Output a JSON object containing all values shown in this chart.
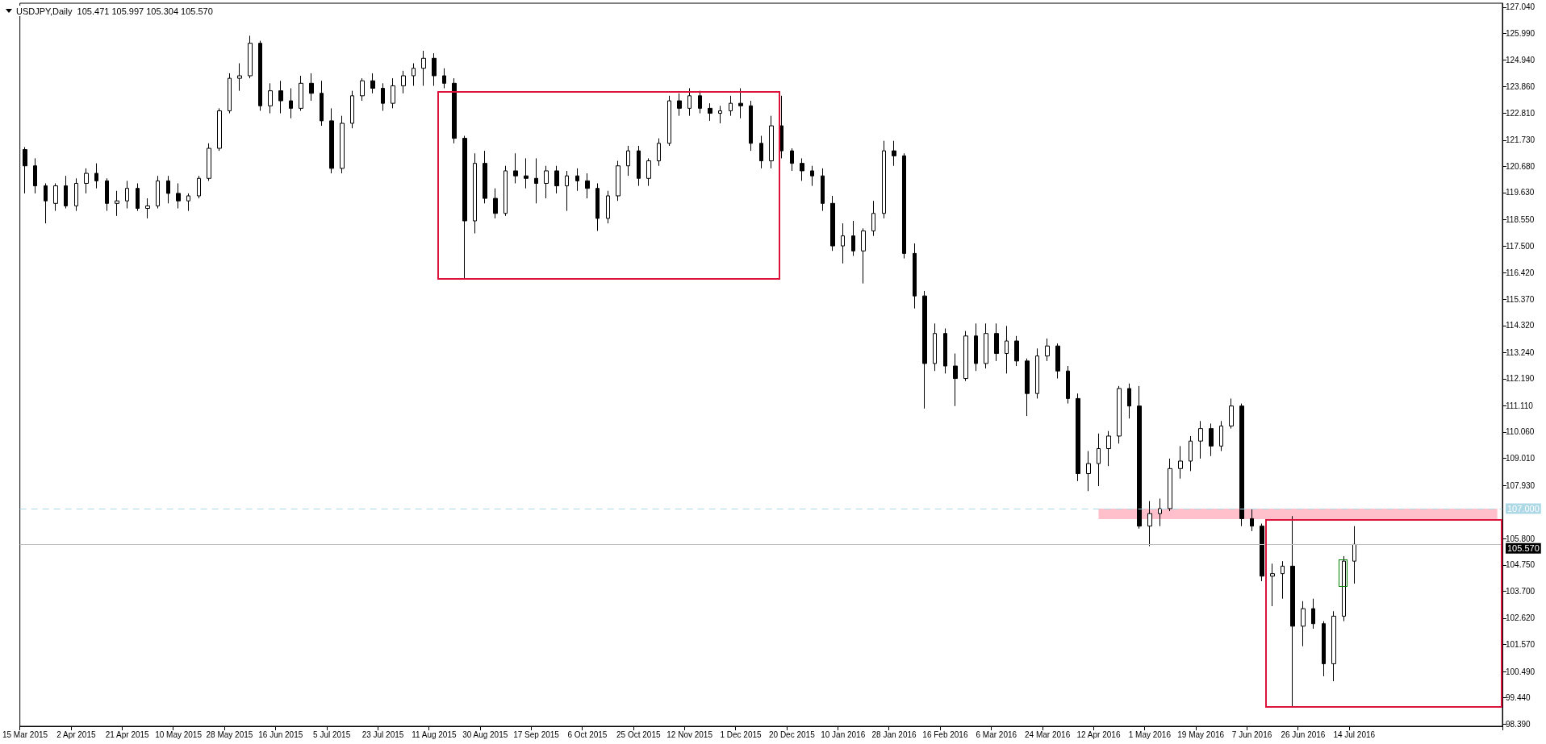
{
  "chart_data": {
    "type": "candlestick",
    "title": "USDJPY,Daily  105.471 105.997 105.304 105.570",
    "color": "#000000",
    "categories": [
      "15 Mar 2015",
      null,
      null,
      null,
      null,
      "2 Apr 2015",
      null,
      null,
      null,
      null,
      "21 Apr 2015",
      null,
      null,
      null,
      null,
      "10 May 2015",
      null,
      null,
      null,
      null,
      "28 May 2015",
      null,
      null,
      null,
      null,
      "16 Jun 2015",
      null,
      null,
      null,
      null,
      "5 Jul 2015",
      null,
      null,
      null,
      null,
      "23 Jul 2015",
      null,
      null,
      null,
      null,
      "11 Aug 2015",
      null,
      null,
      null,
      null,
      "30 Aug 2015",
      null,
      null,
      null,
      null,
      "17 Sep 2015",
      null,
      null,
      null,
      null,
      "6 Oct 2015",
      null,
      null,
      null,
      null,
      "25 Oct 2015",
      null,
      null,
      null,
      null,
      "12 Nov 2015",
      null,
      null,
      null,
      null,
      "1 Dec 2015",
      null,
      null,
      null,
      null,
      "20 Dec 2015",
      null,
      null,
      null,
      null,
      "10 Jan 2016",
      null,
      null,
      null,
      null,
      "28 Jan 2016",
      null,
      null,
      null,
      null,
      "16 Feb 2016",
      null,
      null,
      null,
      null,
      "6 Mar 2016",
      null,
      null,
      null,
      null,
      "24 Mar 2016",
      null,
      null,
      null,
      null,
      "12 Apr 2016",
      null,
      null,
      null,
      null,
      "1 May 2016",
      null,
      null,
      null,
      null,
      "19 May 2016",
      null,
      null,
      null,
      null,
      "7 Jun 2016",
      null,
      null,
      null,
      null,
      "26 Jun 2016",
      null,
      null,
      null,
      null,
      "14 Jul 2016",
      null,
      null,
      null,
      null,
      null,
      null,
      null,
      null,
      null,
      null,
      null,
      null,
      null,
      null
    ],
    "ohlc": [
      [
        121.35,
        121.45,
        119.6,
        120.7
      ],
      [
        120.7,
        121.0,
        119.6,
        119.9
      ],
      [
        119.9,
        120.0,
        118.4,
        119.3
      ],
      [
        119.2,
        120.0,
        118.9,
        119.9
      ],
      [
        119.9,
        120.3,
        119.0,
        119.1
      ],
      [
        119.1,
        120.2,
        118.9,
        120.0
      ],
      [
        120.0,
        120.6,
        119.6,
        120.4
      ],
      [
        120.4,
        120.8,
        119.8,
        120.1
      ],
      [
        120.1,
        120.2,
        118.9,
        119.2
      ],
      [
        119.2,
        119.7,
        118.7,
        119.3
      ],
      [
        119.3,
        120.1,
        119.0,
        119.8
      ],
      [
        119.8,
        120.0,
        118.9,
        119.0
      ],
      [
        119.0,
        119.4,
        118.6,
        119.1
      ],
      [
        119.1,
        120.3,
        119.0,
        120.1
      ],
      [
        120.1,
        120.3,
        119.2,
        119.6
      ],
      [
        119.6,
        120.0,
        119.0,
        119.3
      ],
      [
        119.3,
        119.6,
        118.9,
        119.5
      ],
      [
        119.5,
        120.3,
        119.4,
        120.2
      ],
      [
        120.2,
        121.6,
        120.1,
        121.4
      ],
      [
        121.4,
        123.0,
        121.3,
        122.9
      ],
      [
        122.9,
        124.4,
        122.8,
        124.2
      ],
      [
        124.2,
        124.8,
        123.7,
        124.3
      ],
      [
        124.3,
        125.9,
        124.2,
        125.6
      ],
      [
        125.6,
        125.7,
        122.9,
        123.1
      ],
      [
        123.1,
        124.0,
        122.8,
        123.7
      ],
      [
        123.7,
        124.1,
        122.8,
        123.3
      ],
      [
        123.3,
        123.8,
        122.6,
        123.0
      ],
      [
        123.0,
        124.3,
        122.9,
        124.0
      ],
      [
        124.0,
        124.4,
        123.3,
        123.6
      ],
      [
        123.6,
        124.1,
        122.3,
        122.5
      ],
      [
        122.5,
        123.0,
        120.4,
        120.6
      ],
      [
        120.6,
        122.7,
        120.4,
        122.4
      ],
      [
        122.4,
        123.7,
        122.2,
        123.5
      ],
      [
        123.5,
        124.2,
        123.3,
        124.1
      ],
      [
        124.1,
        124.4,
        123.6,
        123.8
      ],
      [
        123.8,
        124.0,
        122.9,
        123.2
      ],
      [
        123.2,
        124.2,
        123.0,
        123.9
      ],
      [
        123.9,
        124.5,
        123.6,
        124.3
      ],
      [
        124.3,
        124.8,
        123.9,
        124.6
      ],
      [
        124.6,
        125.3,
        123.9,
        125.0
      ],
      [
        125.0,
        125.2,
        123.9,
        124.3
      ],
      [
        124.3,
        124.6,
        123.8,
        124.0
      ],
      [
        124.0,
        124.2,
        121.6,
        121.8
      ],
      [
        121.8,
        121.9,
        116.2,
        118.5
      ],
      [
        118.5,
        121.2,
        118.0,
        120.8
      ],
      [
        120.8,
        121.3,
        119.2,
        119.4
      ],
      [
        119.4,
        119.8,
        118.6,
        118.8
      ],
      [
        118.8,
        120.7,
        118.7,
        120.5
      ],
      [
        120.5,
        121.2,
        120.0,
        120.3
      ],
      [
        120.3,
        121.0,
        119.8,
        120.2
      ],
      [
        120.2,
        121.0,
        119.2,
        120.0
      ],
      [
        120.0,
        120.7,
        119.4,
        120.5
      ],
      [
        120.5,
        120.7,
        119.6,
        119.9
      ],
      [
        119.9,
        120.5,
        118.9,
        120.3
      ],
      [
        120.3,
        120.6,
        119.7,
        120.1
      ],
      [
        120.1,
        120.4,
        119.4,
        119.8
      ],
      [
        119.8,
        120.0,
        118.1,
        118.6
      ],
      [
        118.6,
        119.7,
        118.4,
        119.5
      ],
      [
        119.5,
        120.9,
        119.3,
        120.7
      ],
      [
        120.7,
        121.5,
        120.3,
        121.3
      ],
      [
        121.3,
        121.5,
        119.9,
        120.2
      ],
      [
        120.2,
        121.0,
        119.9,
        120.9
      ],
      [
        120.9,
        121.8,
        120.7,
        121.6
      ],
      [
        121.6,
        123.5,
        121.5,
        123.3
      ],
      [
        123.3,
        123.6,
        122.7,
        123.0
      ],
      [
        123.0,
        123.8,
        122.7,
        123.5
      ],
      [
        123.5,
        123.7,
        122.8,
        123.0
      ],
      [
        123.0,
        123.2,
        122.5,
        122.8
      ],
      [
        122.8,
        123.1,
        122.4,
        122.9
      ],
      [
        122.9,
        123.5,
        122.7,
        123.2
      ],
      [
        123.2,
        123.8,
        122.6,
        123.1
      ],
      [
        123.1,
        123.3,
        121.3,
        121.6
      ],
      [
        121.6,
        121.9,
        120.6,
        120.9
      ],
      [
        120.9,
        122.7,
        120.6,
        122.3
      ],
      [
        122.3,
        123.5,
        121.0,
        121.3
      ],
      [
        121.3,
        121.4,
        120.5,
        120.8
      ],
      [
        120.8,
        121.0,
        120.1,
        120.5
      ],
      [
        120.5,
        120.7,
        119.9,
        120.3
      ],
      [
        120.3,
        120.6,
        118.9,
        119.2
      ],
      [
        119.2,
        119.5,
        117.3,
        117.5
      ],
      [
        117.5,
        118.4,
        116.8,
        117.9
      ],
      [
        117.9,
        118.5,
        117.1,
        117.3
      ],
      [
        117.3,
        118.2,
        116.0,
        118.1
      ],
      [
        118.1,
        119.3,
        117.9,
        118.8
      ],
      [
        118.8,
        121.7,
        118.6,
        121.3
      ],
      [
        121.3,
        121.7,
        120.7,
        121.1
      ],
      [
        121.1,
        121.2,
        117.0,
        117.2
      ],
      [
        117.2,
        117.6,
        115.0,
        115.5
      ],
      [
        115.5,
        115.7,
        111.0,
        112.8
      ],
      [
        112.8,
        114.4,
        112.5,
        114.0
      ],
      [
        114.0,
        114.2,
        112.4,
        112.7
      ],
      [
        112.7,
        113.2,
        111.1,
        112.2
      ],
      [
        112.2,
        114.1,
        112.1,
        113.9
      ],
      [
        113.9,
        114.4,
        112.5,
        112.8
      ],
      [
        112.8,
        114.4,
        112.6,
        114.0
      ],
      [
        114.0,
        114.4,
        112.9,
        113.2
      ],
      [
        113.2,
        114.3,
        112.4,
        113.7
      ],
      [
        113.7,
        113.9,
        112.7,
        112.9
      ],
      [
        112.9,
        113.0,
        110.7,
        111.6
      ],
      [
        111.6,
        113.4,
        111.4,
        113.1
      ],
      [
        113.1,
        113.8,
        112.9,
        113.5
      ],
      [
        113.5,
        113.6,
        112.2,
        112.5
      ],
      [
        112.5,
        112.7,
        111.2,
        111.4
      ],
      [
        111.4,
        111.6,
        108.1,
        108.4
      ],
      [
        108.4,
        109.3,
        107.7,
        108.8
      ],
      [
        108.8,
        110.0,
        107.9,
        109.4
      ],
      [
        109.4,
        110.1,
        108.7,
        109.9
      ],
      [
        109.9,
        111.9,
        109.6,
        111.8
      ],
      [
        111.8,
        112.0,
        110.6,
        111.1
      ],
      [
        111.1,
        111.9,
        106.2,
        106.3
      ],
      [
        106.3,
        107.3,
        105.5,
        106.8
      ],
      [
        106.8,
        107.4,
        106.3,
        107.0
      ],
      [
        107.0,
        109.0,
        106.9,
        108.6
      ],
      [
        108.6,
        109.5,
        108.2,
        108.9
      ],
      [
        108.9,
        109.9,
        108.5,
        109.7
      ],
      [
        109.7,
        110.5,
        109.0,
        110.2
      ],
      [
        110.2,
        110.4,
        109.1,
        109.5
      ],
      [
        109.5,
        110.5,
        109.3,
        110.3
      ],
      [
        110.3,
        111.4,
        110.2,
        111.1
      ],
      [
        111.1,
        111.2,
        106.3,
        106.6
      ],
      [
        106.6,
        107.0,
        106.1,
        106.3
      ],
      [
        106.3,
        106.4,
        104.1,
        104.3
      ],
      [
        104.3,
        104.8,
        103.1,
        104.4
      ],
      [
        104.4,
        104.9,
        103.4,
        104.7
      ],
      [
        104.7,
        106.7,
        99.05,
        102.3
      ],
      [
        102.3,
        103.3,
        101.5,
        103.0
      ],
      [
        103.0,
        103.4,
        102.2,
        102.4
      ],
      [
        102.4,
        102.5,
        100.3,
        100.8
      ],
      [
        100.8,
        102.9,
        100.1,
        102.7
      ],
      [
        102.7,
        105.1,
        102.5,
        104.9
      ],
      [
        104.9,
        106.3,
        104.0,
        105.57
      ],
      null,
      null,
      null,
      null,
      null,
      null,
      null,
      null,
      null,
      null,
      null,
      null,
      null,
      null
    ],
    "ylim": [
      98.3,
      127.2
    ],
    "yticks": [
      {
        "value": 98.39,
        "label": "98.390"
      },
      {
        "value": 99.44,
        "label": "99.440"
      },
      {
        "value": 100.49,
        "label": "100.490"
      },
      {
        "value": 101.57,
        "label": "101.570"
      },
      {
        "value": 102.62,
        "label": "102.620"
      },
      {
        "value": 103.7,
        "label": "103.700"
      },
      {
        "value": 104.75,
        "label": "104.750"
      },
      {
        "value": 105.8,
        "label": "105.800"
      },
      {
        "value": 107.93,
        "label": "107.930"
      },
      {
        "value": 109.01,
        "label": "109.010"
      },
      {
        "value": 110.06,
        "label": "110.060"
      },
      {
        "value": 111.11,
        "label": "111.110"
      },
      {
        "value": 112.19,
        "label": "112.190"
      },
      {
        "value": 113.24,
        "label": "113.240"
      },
      {
        "value": 114.32,
        "label": "114.320"
      },
      {
        "value": 115.37,
        "label": "115.370"
      },
      {
        "value": 116.42,
        "label": "116.420"
      },
      {
        "value": 117.5,
        "label": "117.500"
      },
      {
        "value": 118.55,
        "label": "118.550"
      },
      {
        "value": 119.63,
        "label": "119.630"
      },
      {
        "value": 120.68,
        "label": "120.680"
      },
      {
        "value": 121.73,
        "label": "121.730"
      },
      {
        "value": 122.81,
        "label": "122.810"
      },
      {
        "value": 123.86,
        "label": "123.860"
      },
      {
        "value": 124.94,
        "label": "124.940"
      },
      {
        "value": 125.99,
        "label": "125.990"
      },
      {
        "value": 127.04,
        "label": "127.040"
      }
    ],
    "ref_lines": [
      {
        "axis": "y",
        "value": 107.0,
        "label": "107.000",
        "color": "#add8e6",
        "line_style": "dashed"
      },
      {
        "axis": "y",
        "value": 105.57,
        "label": "105.570",
        "color": "#c0c0c0",
        "line_style": "solid"
      }
    ],
    "bands": [
      {
        "axis": "y",
        "from": 106.58,
        "to": 107.0,
        "color": "#ffc0cb"
      }
    ],
    "grid": false
  }
}
